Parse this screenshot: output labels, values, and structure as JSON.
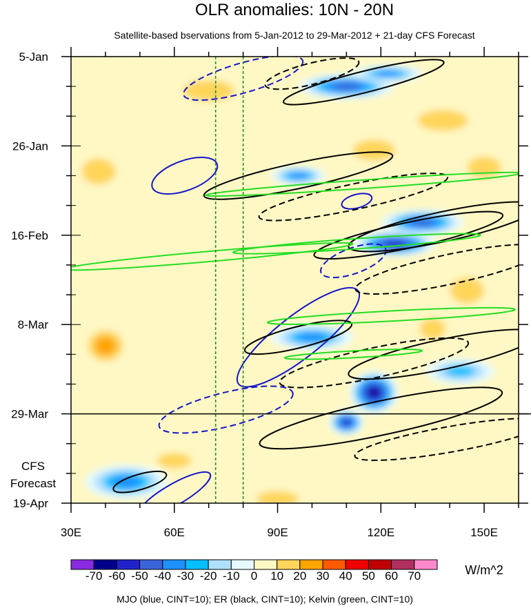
{
  "chart_data": {
    "type": "heatmap",
    "title": "OLR anomalies: 10N - 20N",
    "subtitle": "Satellite-based bservations from 5-Jan-2012 to 29-Mar-2012 + 21-day CFS Forecast",
    "xlabel": "",
    "ylabel": "",
    "x_range": [
      30,
      160
    ],
    "x_ticks": [
      {
        "value": 30,
        "label": "30E"
      },
      {
        "value": 60,
        "label": "60E"
      },
      {
        "value": 90,
        "label": "90E"
      },
      {
        "value": 120,
        "label": "120E"
      },
      {
        "value": 150,
        "label": "150E"
      }
    ],
    "y_range_days": [
      0,
      105
    ],
    "y_ticks": [
      {
        "day": 0,
        "label": "5-Jan"
      },
      {
        "day": 21,
        "label": "26-Jan"
      },
      {
        "day": 42,
        "label": "16-Feb"
      },
      {
        "day": 63,
        "label": "8-Mar"
      },
      {
        "day": 84,
        "label": "29-Mar"
      },
      {
        "day": 105,
        "label": "19-Apr"
      }
    ],
    "forecast_start_day": 84,
    "forecast_label_line1": "CFS",
    "forecast_label_line2": "Forecast",
    "reference_lines_lon": [
      72,
      80
    ],
    "colorbar": {
      "levels": [
        -70,
        -60,
        -50,
        -40,
        -30,
        -20,
        -10,
        0,
        10,
        20,
        30,
        40,
        50,
        60,
        70
      ],
      "labels": [
        "-70",
        "-60",
        "-50",
        "-40",
        "-30",
        "-20",
        "-10",
        "0",
        "10",
        "20",
        "30",
        "40",
        "50",
        "60",
        "70"
      ],
      "colors": [
        "#8a2be2",
        "#00008b",
        "#2222cc",
        "#3a64d8",
        "#1e90ff",
        "#00bfff",
        "#b0e0ff",
        "#e6fbff",
        "#fff8c4",
        "#ffd55a",
        "#ffa500",
        "#ff5a00",
        "#ee0000",
        "#c00000",
        "#b03060",
        "#ff88cc"
      ],
      "units": "W/m^2"
    },
    "footnote": "MJO (blue, CINT=10); ER (black, CINT=10); Kelvin (green, CINT=10)",
    "anomaly_features": [
      {
        "lon": 110,
        "day": 7,
        "value": -45,
        "rx": 14,
        "ry": 3
      },
      {
        "lon": 122,
        "day": 4,
        "value": -40,
        "rx": 10,
        "ry": 2
      },
      {
        "lon": 96,
        "day": 28,
        "value": -35,
        "rx": 8,
        "ry": 2.2
      },
      {
        "lon": 124,
        "day": 44,
        "value": -60,
        "rx": 12,
        "ry": 3
      },
      {
        "lon": 132,
        "day": 39,
        "value": -45,
        "rx": 12,
        "ry": 3
      },
      {
        "lon": 100,
        "day": 66,
        "value": -35,
        "rx": 12,
        "ry": 3
      },
      {
        "lon": 118,
        "day": 79,
        "value": -65,
        "rx": 7,
        "ry": 5
      },
      {
        "lon": 110,
        "day": 86,
        "value": -60,
        "rx": 5,
        "ry": 3
      },
      {
        "lon": 46,
        "day": 100,
        "value": -35,
        "rx": 12,
        "ry": 4
      },
      {
        "lon": 143,
        "day": 74,
        "value": -30,
        "rx": 10,
        "ry": 3
      },
      {
        "lon": 40,
        "day": 68,
        "value": 25,
        "rx": 7,
        "ry": 5
      },
      {
        "lon": 38,
        "day": 27,
        "value": 18,
        "rx": 8,
        "ry": 5
      },
      {
        "lon": 145,
        "day": 55,
        "value": 22,
        "rx": 8,
        "ry": 5
      },
      {
        "lon": 138,
        "day": 15,
        "value": 18,
        "rx": 12,
        "ry": 4
      },
      {
        "lon": 150,
        "day": 26,
        "value": 18,
        "rx": 8,
        "ry": 4
      },
      {
        "lon": 118,
        "day": 22,
        "value": 15,
        "rx": 10,
        "ry": 4
      },
      {
        "lon": 70,
        "day": 8,
        "value": 15,
        "rx": 12,
        "ry": 4
      },
      {
        "lon": 60,
        "day": 95,
        "value": 15,
        "rx": 8,
        "ry": 3
      },
      {
        "lon": 90,
        "day": 104,
        "value": 15,
        "rx": 10,
        "ry": 3
      },
      {
        "lon": 135,
        "day": 64,
        "value": 18,
        "rx": 6,
        "ry": 4
      }
    ],
    "contours": [
      {
        "color": "#1414c8",
        "dashed": true,
        "cx": 80,
        "cy": 5,
        "a": 18,
        "b": 3.5,
        "angle": -16
      },
      {
        "color": "#1414c8",
        "dashed": false,
        "cx": 63,
        "cy": 28,
        "a": 10,
        "b": 3.5,
        "angle": -20
      },
      {
        "color": "#1414c8",
        "dashed": false,
        "cx": 113,
        "cy": 34,
        "a": 4.5,
        "b": 1.6,
        "angle": -15
      },
      {
        "color": "#1414c8",
        "dashed": true,
        "cx": 112,
        "cy": 48,
        "a": 10,
        "b": 3,
        "angle": -20
      },
      {
        "color": "#1414c8",
        "dashed": false,
        "cx": 96,
        "cy": 66,
        "a": 22,
        "b": 5,
        "angle": -38
      },
      {
        "color": "#1414c8",
        "dashed": true,
        "cx": 75,
        "cy": 83,
        "a": 20,
        "b": 4,
        "angle": -14
      },
      {
        "color": "#1414c8",
        "dashed": false,
        "cx": 60,
        "cy": 103,
        "a": 12,
        "b": 2.5,
        "angle": -30
      },
      {
        "color": "#000000",
        "dashed": false,
        "cx": 115,
        "cy": 6,
        "a": 24,
        "b": 2.5,
        "angle": -14
      },
      {
        "color": "#000000",
        "dashed": true,
        "cx": 100,
        "cy": 4,
        "a": 14,
        "b": 2.5,
        "angle": -14
      },
      {
        "color": "#000000",
        "dashed": false,
        "cx": 96,
        "cy": 28,
        "a": 28,
        "b": 3,
        "angle": -12
      },
      {
        "color": "#000000",
        "dashed": true,
        "cx": 112,
        "cy": 33,
        "a": 28,
        "b": 3,
        "angle": -12
      },
      {
        "color": "#000000",
        "dashed": false,
        "cx": 128,
        "cy": 42,
        "a": 28,
        "b": 3,
        "angle": -12
      },
      {
        "color": "#000000",
        "dashed": false,
        "cx": 138,
        "cy": 40,
        "a": 28,
        "b": 3.5,
        "angle": -12
      },
      {
        "color": "#000000",
        "dashed": true,
        "cx": 140,
        "cy": 50,
        "a": 28,
        "b": 3.5,
        "angle": -12
      },
      {
        "color": "#000000",
        "dashed": false,
        "cx": 96,
        "cy": 66,
        "a": 16,
        "b": 2.5,
        "angle": -14
      },
      {
        "color": "#000000",
        "dashed": true,
        "cx": 118,
        "cy": 72,
        "a": 28,
        "b": 3.5,
        "angle": -12
      },
      {
        "color": "#000000",
        "dashed": false,
        "cx": 138,
        "cy": 70,
        "a": 28,
        "b": 3.5,
        "angle": -12
      },
      {
        "color": "#000000",
        "dashed": false,
        "cx": 120,
        "cy": 85,
        "a": 36,
        "b": 4,
        "angle": -12
      },
      {
        "color": "#000000",
        "dashed": true,
        "cx": 140,
        "cy": 90,
        "a": 28,
        "b": 3,
        "angle": -10
      },
      {
        "color": "#000000",
        "dashed": false,
        "cx": 50,
        "cy": 100,
        "a": 8,
        "b": 1.8,
        "angle": -16
      },
      {
        "color": "#22dd22",
        "dashed": false,
        "cx": 115,
        "cy": 30,
        "a": 46,
        "b": 1,
        "angle": -4
      },
      {
        "color": "#22dd22",
        "dashed": false,
        "cx": 113,
        "cy": 44,
        "a": 36,
        "b": 1.2,
        "angle": -4
      },
      {
        "color": "#22dd22",
        "dashed": false,
        "cx": 70,
        "cy": 47,
        "a": 42,
        "b": 1.2,
        "angle": -5
      },
      {
        "color": "#22dd22",
        "dashed": false,
        "cx": 123,
        "cy": 61,
        "a": 36,
        "b": 1.2,
        "angle": -3
      },
      {
        "color": "#22dd22",
        "dashed": false,
        "cx": 112,
        "cy": 70,
        "a": 20,
        "b": 0.8,
        "angle": -3
      }
    ]
  }
}
